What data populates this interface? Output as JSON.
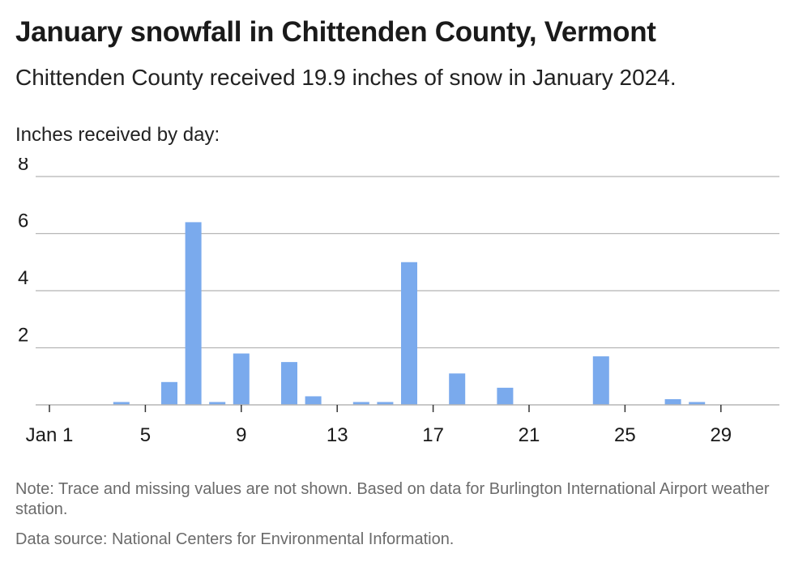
{
  "title": "January snowfall in Chittenden County, Vermont",
  "subtitle": "Chittenden County received 19.9 inches of snow in January 2024.",
  "note": "Note: Trace and missing values are not shown. Based on data for Burlington International Airport weather station.",
  "source": "Data source: National Centers for Environmental Information.",
  "colors": {
    "bar": "#7aaaed",
    "grid": "#b5b5b5",
    "axis": "#333333"
  },
  "chart_data": {
    "type": "bar",
    "title": "January snowfall in Chittenden County, Vermont",
    "subtitle": "Chittenden County received 19.9 inches of snow in January 2024.",
    "ylabel": "Inches received by day:",
    "xlabel": "",
    "ylim": [
      0,
      8
    ],
    "yticks": [
      2,
      4,
      6,
      8
    ],
    "xticks": [
      {
        "day": 1,
        "label": "Jan 1"
      },
      {
        "day": 5,
        "label": "5"
      },
      {
        "day": 9,
        "label": "9"
      },
      {
        "day": 13,
        "label": "13"
      },
      {
        "day": 17,
        "label": "17"
      },
      {
        "day": 21,
        "label": "21"
      },
      {
        "day": 25,
        "label": "25"
      },
      {
        "day": 29,
        "label": "29"
      }
    ],
    "grid": true,
    "days": [
      1,
      2,
      3,
      4,
      5,
      6,
      7,
      8,
      9,
      10,
      11,
      12,
      13,
      14,
      15,
      16,
      17,
      18,
      19,
      20,
      21,
      22,
      23,
      24,
      25,
      26,
      27,
      28,
      29,
      30,
      31
    ],
    "values": [
      0,
      0,
      0,
      0.1,
      0,
      0.8,
      6.4,
      0.1,
      1.8,
      0,
      1.5,
      0.3,
      0,
      0.1,
      0.1,
      5.0,
      0,
      1.1,
      0,
      0.6,
      0,
      0,
      0,
      1.7,
      0,
      0,
      0.2,
      0.1,
      0,
      0,
      0
    ]
  }
}
